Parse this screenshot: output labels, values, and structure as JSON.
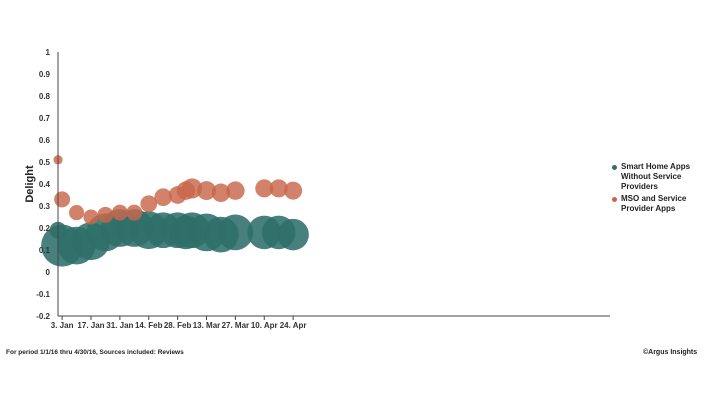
{
  "chart_data": {
    "type": "scatter",
    "ylabel": "Delight",
    "ylim": [
      -0.2,
      1
    ],
    "y_ticks": [
      "1",
      "0.9",
      "0.8",
      "0.7",
      "0.6",
      "0.5",
      "0.4",
      "0.3",
      "0.2",
      "0.1",
      "0",
      "-0.1",
      "-0.2"
    ],
    "x_tick_labels": [
      "3. Jan",
      "17. Jan",
      "31. Jan",
      "14. Feb",
      "28. Feb",
      "13. Mar",
      "27. Mar",
      "10. Apr",
      "24. Apr"
    ],
    "grid": false,
    "legend_position": "right",
    "series": [
      {
        "name": "Smart Home Apps Without Service Providers",
        "color": "#2e6e6a",
        "x": [
          "1/1/16",
          "1/3/16",
          "1/10/16",
          "1/17/16",
          "1/24/16",
          "1/31/16",
          "2/7/16",
          "2/14/16",
          "2/21/16",
          "2/28/16",
          "3/6/16",
          "3/13/16",
          "3/20/16",
          "3/27/16",
          "3/3/16",
          "4/10/16",
          "4/17/16",
          "4/24/16"
        ],
        "y": [
          0.19,
          0.12,
          0.12,
          0.14,
          0.18,
          0.2,
          0.2,
          0.19,
          0.19,
          0.19,
          0.19,
          0.18,
          0.17,
          0.18,
          0.18,
          0.18,
          0.18,
          0.17
        ],
        "bubble_size": [
          0.4,
          1.0,
          0.9,
          0.9,
          0.9,
          0.9,
          0.9,
          0.9,
          0.85,
          0.85,
          0.85,
          0.9,
          0.85,
          0.85,
          0.8,
          0.8,
          0.8,
          0.75
        ]
      },
      {
        "name": "MSO and Service Provider Apps",
        "color": "#c8664a",
        "x": [
          "1/1/16",
          "1/3/16",
          "1/10/16",
          "1/17/16",
          "1/24/16",
          "1/31/16",
          "2/7/16",
          "2/14/16",
          "2/21/16",
          "2/28/16",
          "3/6/16",
          "3/13/16",
          "3/20/16",
          "3/27/16",
          "3/3/16",
          "4/10/16",
          "4/17/16",
          "4/24/16"
        ],
        "y": [
          0.51,
          0.33,
          0.27,
          0.25,
          0.26,
          0.27,
          0.27,
          0.31,
          0.34,
          0.35,
          0.38,
          0.37,
          0.36,
          0.37,
          0.37,
          0.38,
          0.38,
          0.37
        ],
        "bubble_size": [
          0.22,
          0.38,
          0.36,
          0.36,
          0.38,
          0.38,
          0.38,
          0.4,
          0.42,
          0.42,
          0.48,
          0.45,
          0.44,
          0.44,
          0.44,
          0.43,
          0.43,
          0.43
        ]
      }
    ]
  },
  "footer": {
    "period": "For period 1/1/16 thru 4/30/16, Sources included: Reviews",
    "brand": "©Argus Insights"
  }
}
